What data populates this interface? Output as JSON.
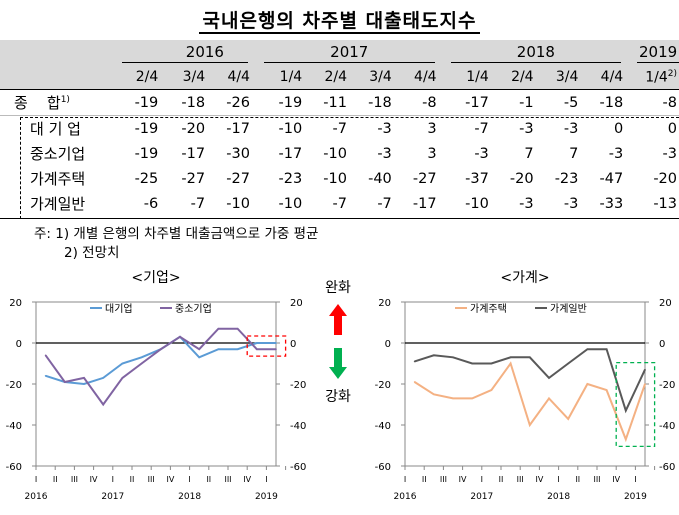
{
  "title": "국내은행의 차주별 대출태도지수",
  "table": {
    "years": [
      "2016",
      "2017",
      "2018",
      "2019"
    ],
    "quarters": [
      "2/4",
      "3/4",
      "4/4",
      "1/4",
      "2/4",
      "3/4",
      "4/4",
      "1/4",
      "2/4",
      "3/4",
      "4/4",
      "1/4"
    ],
    "quarter_last_note": "2)",
    "rows": [
      {
        "label": "종    합",
        "note": "1)",
        "values": [
          "-19",
          "-18",
          "-26",
          "-19",
          "-11",
          "-18",
          "-8",
          "-17",
          "-1",
          "-5",
          "-18",
          "-8"
        ]
      },
      {
        "label": "대 기 업",
        "values": [
          "-19",
          "-20",
          "-17",
          "-10",
          "-7",
          "-3",
          "3",
          "-7",
          "-3",
          "-3",
          "0",
          "0"
        ]
      },
      {
        "label": "중소기업",
        "values": [
          "-19",
          "-17",
          "-30",
          "-17",
          "-10",
          "-3",
          "3",
          "-3",
          "7",
          "7",
          "-3",
          "-3"
        ]
      },
      {
        "label": "가계주택",
        "values": [
          "-25",
          "-27",
          "-27",
          "-23",
          "-10",
          "-40",
          "-27",
          "-37",
          "-20",
          "-23",
          "-47",
          "-20"
        ]
      },
      {
        "label": "가계일반",
        "values": [
          "-6",
          "-7",
          "-10",
          "-10",
          "-7",
          "-7",
          "-17",
          "-10",
          "-3",
          "-3",
          "-33",
          "-13"
        ]
      }
    ]
  },
  "notes": {
    "prefix": "주:",
    "items": [
      "1) 개별 은행의 차주별 대출금액으로 가중 평균",
      "2) 전망치"
    ]
  },
  "middle": {
    "up_label": "완화",
    "down_label": "강화",
    "up_color": "#ff0000",
    "down_color": "#00b050"
  },
  "chart_data": [
    {
      "type": "line",
      "title": "<기업>",
      "ylim": [
        -60,
        20
      ],
      "yticks": [
        "20",
        "0",
        "-20",
        "-40",
        "-60"
      ],
      "x_labels": [
        "2016",
        "I",
        "II",
        "III",
        "IV",
        "2017",
        "I",
        "II",
        "III",
        "IV",
        "2018",
        "I",
        "II",
        "III",
        "IV",
        "2019",
        "I"
      ],
      "series": [
        {
          "name": "대기업",
          "color": "#5b9bd5",
          "values": [
            -16,
            -19,
            -20,
            -17,
            -10,
            -7,
            -3,
            3,
            -7,
            -3,
            -3,
            0,
            0
          ]
        },
        {
          "name": "중소기업",
          "color": "#8064a2",
          "values": [
            -6,
            -19,
            -17,
            -30,
            -17,
            -10,
            -3,
            3,
            -3,
            7,
            7,
            -3,
            -3
          ]
        }
      ],
      "forecast_box_color": "#ff0000"
    },
    {
      "type": "line",
      "title": "<가계>",
      "ylim": [
        -60,
        20
      ],
      "yticks": [
        "20",
        "0",
        "-20",
        "-40",
        "-60"
      ],
      "x_labels": [
        "2016",
        "I",
        "II",
        "III",
        "IV",
        "2017",
        "I",
        "II",
        "III",
        "IV",
        "2018",
        "I",
        "II",
        "III",
        "IV",
        "2019",
        "I"
      ],
      "series": [
        {
          "name": "가계주택",
          "color": "#f4b183",
          "values": [
            -19,
            -25,
            -27,
            -27,
            -23,
            -10,
            -40,
            -27,
            -37,
            -20,
            -23,
            -47,
            -20
          ]
        },
        {
          "name": "가계일반",
          "color": "#595959",
          "values": [
            -9,
            -6,
            -7,
            -10,
            -10,
            -7,
            -7,
            -17,
            -10,
            -3,
            -3,
            -33,
            -13
          ]
        }
      ],
      "forecast_box_color": "#00b050"
    }
  ]
}
